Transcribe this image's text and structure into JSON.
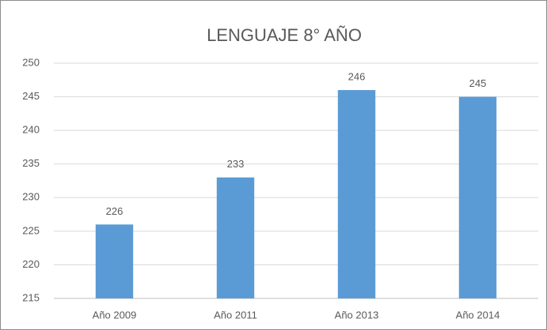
{
  "chart_data": {
    "type": "bar",
    "title": "LENGUAJE 8° AÑO",
    "categories": [
      "Año 2009",
      "Año 2011",
      "Año 2013",
      "Año 2014"
    ],
    "values": [
      226,
      233,
      246,
      245
    ],
    "color": "#5b9bd5",
    "ylim": [
      215,
      250
    ],
    "yticks": [
      215,
      220,
      225,
      230,
      235,
      240,
      245,
      250
    ],
    "grid": true
  }
}
